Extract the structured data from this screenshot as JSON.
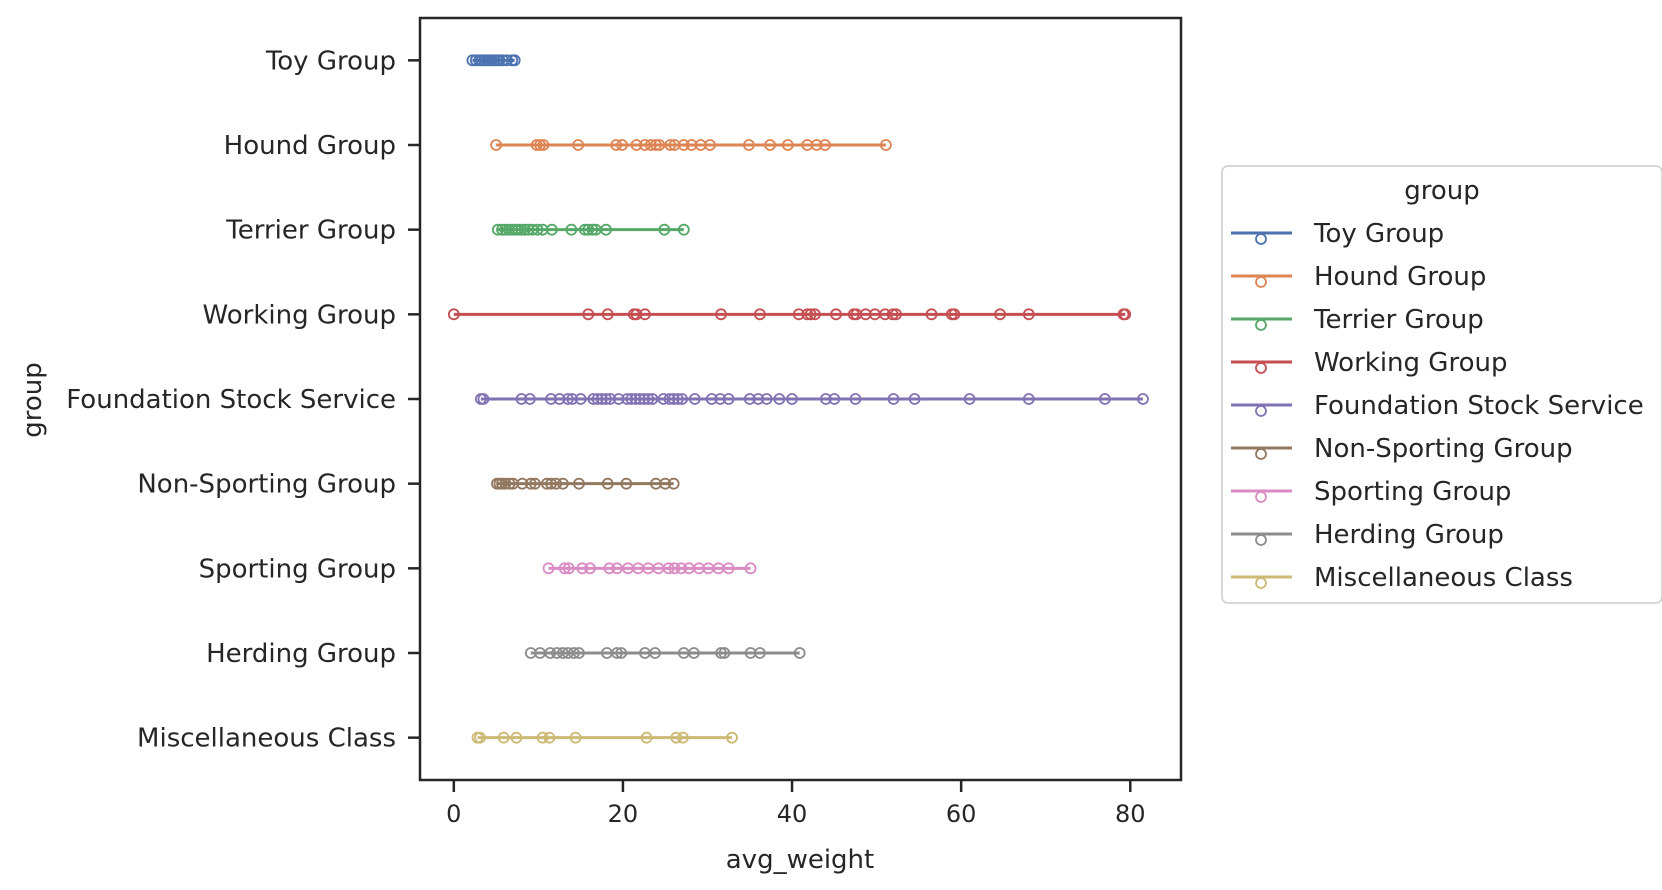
{
  "chart_data": {
    "type": "scatter",
    "xlabel": "avg_weight",
    "ylabel": "group",
    "xlim": [
      -4,
      86
    ],
    "x_ticks": [
      0,
      20,
      40,
      60,
      80
    ],
    "grid": false,
    "legend": {
      "title": "group",
      "placement": "outside right"
    },
    "series": [
      {
        "name": "Toy Group",
        "color": "#4c72b0",
        "values": [
          2.2,
          2.6,
          3.0,
          3.3,
          3.6,
          3.9,
          4.2,
          4.5,
          4.8,
          5.1,
          5.4,
          5.8,
          6.3,
          6.9,
          7.2
        ]
      },
      {
        "name": "Hound Group",
        "color": "#dd8452",
        "values": [
          5.0,
          9.8,
          10.2,
          10.6,
          14.7,
          19.2,
          19.9,
          21.6,
          22.6,
          23.3,
          23.9,
          24.3,
          25.6,
          26.1,
          27.2,
          28.1,
          29.2,
          30.3,
          34.9,
          37.4,
          39.5,
          41.8,
          42.9,
          43.9,
          51.1
        ]
      },
      {
        "name": "Terrier Group",
        "color": "#55a868",
        "values": [
          5.2,
          5.7,
          6.1,
          6.5,
          6.9,
          7.3,
          7.6,
          8.0,
          8.4,
          8.8,
          9.3,
          9.9,
          10.5,
          11.6,
          13.9,
          15.5,
          15.9,
          16.4,
          16.8,
          18.0,
          24.9,
          27.2
        ]
      },
      {
        "name": "Working Group",
        "color": "#c44e52",
        "values": [
          0.0,
          15.9,
          18.2,
          21.3,
          21.6,
          22.6,
          31.6,
          36.2,
          40.8,
          41.8,
          42.2,
          42.7,
          45.2,
          47.3,
          47.6,
          48.7,
          49.8,
          51.0,
          51.9,
          52.3,
          56.5,
          58.9,
          59.2,
          64.6,
          68.0,
          79.2,
          79.4
        ]
      },
      {
        "name": "Foundation Stock Service",
        "color": "#8172b3",
        "values": [
          3.2,
          3.5,
          8.0,
          9.0,
          11.5,
          12.5,
          13.5,
          14.0,
          15.0,
          16.5,
          17.0,
          17.5,
          18.0,
          18.5,
          19.5,
          20.5,
          21.0,
          21.5,
          22.0,
          22.5,
          23.0,
          23.5,
          24.8,
          25.5,
          26.0,
          26.5,
          27.0,
          28.5,
          30.5,
          31.5,
          32.5,
          35.0,
          36.0,
          37.0,
          38.5,
          40.0,
          44.0,
          45.0,
          47.5,
          52.0,
          54.5,
          61.0,
          68.0,
          77.0,
          81.5
        ]
      },
      {
        "name": "Non-Sporting Group",
        "color": "#937860",
        "values": [
          5.1,
          5.4,
          5.7,
          6.1,
          6.6,
          7.0,
          8.1,
          9.1,
          9.6,
          11.0,
          11.5,
          12.1,
          12.9,
          14.8,
          18.2,
          20.4,
          23.9,
          25.0,
          26.0
        ]
      },
      {
        "name": "Sporting Group",
        "color": "#da8bc3",
        "values": [
          11.2,
          13.1,
          13.6,
          15.2,
          16.1,
          18.4,
          19.3,
          20.6,
          21.8,
          23.0,
          24.2,
          25.4,
          26.1,
          26.9,
          27.8,
          29.0,
          30.1,
          31.3,
          32.5,
          35.1
        ]
      },
      {
        "name": "Herding Group",
        "color": "#8c8c8c",
        "values": [
          9.1,
          10.2,
          11.4,
          12.2,
          12.9,
          13.5,
          14.2,
          14.8,
          18.1,
          19.3,
          19.8,
          22.6,
          23.8,
          27.2,
          28.4,
          31.6,
          32.0,
          35.1,
          36.2,
          40.9
        ]
      },
      {
        "name": "Miscellaneous Class",
        "color": "#ccb974",
        "values": [
          2.8,
          3.1,
          5.9,
          7.4,
          10.5,
          11.3,
          14.4,
          22.8,
          26.3,
          27.1,
          32.9
        ]
      }
    ]
  }
}
